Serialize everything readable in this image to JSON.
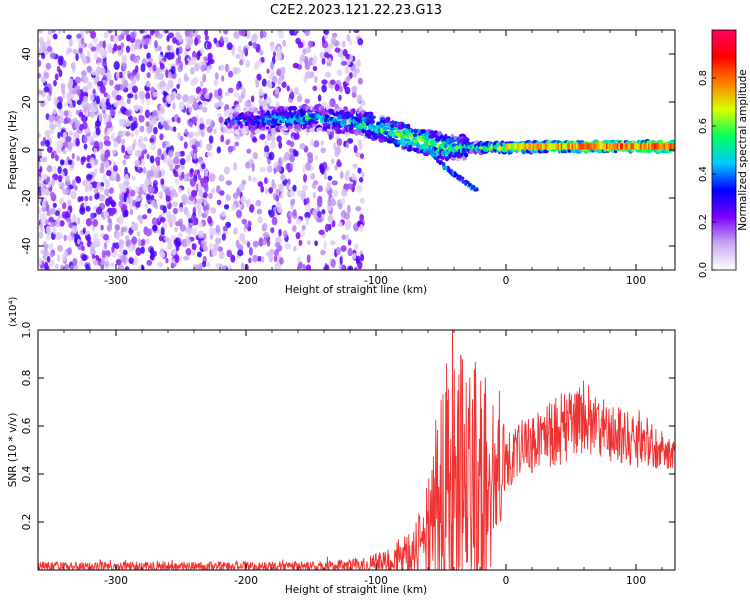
{
  "title": "C2E2.2023.121.22.23.G13",
  "chart_data": [
    {
      "type": "heatmap",
      "title": "C2E2.2023.121.22.23.G13",
      "xlabel": "Height of straight line (km)",
      "ylabel": "Frequency (Hz)",
      "xlim": [
        -360,
        130
      ],
      "ylim": [
        -50,
        50
      ],
      "x_ticks": [
        -300,
        -200,
        -100,
        0,
        100
      ],
      "y_ticks": [
        -40,
        -20,
        0,
        20,
        40
      ],
      "colorbar": {
        "label": "Normalized spectral amplitude",
        "range": [
          0,
          1
        ],
        "ticks": [
          "0.0",
          "0.2",
          "0.4",
          "0.6",
          "0.8"
        ],
        "colormap": [
          "#ffffff",
          "#c8a8f0",
          "#7a00ff",
          "#0000ff",
          "#00c8ff",
          "#00ff60",
          "#d8ff00",
          "#ff8000",
          "#ff0000",
          "#ff0060"
        ]
      },
      "noise_region": {
        "x": [
          -360,
          -110
        ],
        "freq": [
          -50,
          50
        ],
        "amplitude": [
          0.05,
          0.3
        ]
      },
      "ridge": [
        {
          "x": -215,
          "f": 12,
          "a": 0.3
        },
        {
          "x": -170,
          "f": 13,
          "a": 0.45
        },
        {
          "x": -140,
          "f": 13,
          "a": 0.45
        },
        {
          "x": -110,
          "f": 11,
          "a": 0.5
        },
        {
          "x": -90,
          "f": 8,
          "a": 0.55
        },
        {
          "x": -75,
          "f": 5,
          "a": 0.6
        },
        {
          "x": -60,
          "f": 3,
          "a": 0.6
        },
        {
          "x": -45,
          "f": 1,
          "a": 0.55
        },
        {
          "x": -30,
          "f": 1,
          "a": 0.5
        },
        {
          "x": 0,
          "f": 1,
          "a": 0.65
        },
        {
          "x": 50,
          "f": 1.5,
          "a": 0.75
        },
        {
          "x": 130,
          "f": 1.5,
          "a": 0.8
        }
      ],
      "branch": [
        {
          "x": -60,
          "f": 0
        },
        {
          "x": -45,
          "f": -8
        },
        {
          "x": -35,
          "f": -12
        },
        {
          "x": -22,
          "f": -17
        }
      ]
    },
    {
      "type": "line",
      "xlabel": "Height of straight line (km)",
      "ylabel": "SNR (10 * v/v)",
      "y_multiplier": "(x10⁴)",
      "xlim": [
        -360,
        130
      ],
      "ylim": [
        0,
        1.0
      ],
      "x_ticks": [
        -300,
        -200,
        -100,
        0,
        100
      ],
      "y_ticks": [
        0.2,
        0.4,
        0.6,
        0.8,
        1.0
      ],
      "y_tick_labels": [
        "0.2",
        "0.4",
        "0.6",
        "0.8",
        "1.0"
      ],
      "series": [
        {
          "color": "#ee3333",
          "envelope": [
            {
              "x": -360,
              "base": 0.015,
              "amp": 0.02
            },
            {
              "x": -150,
              "base": 0.015,
              "amp": 0.02
            },
            {
              "x": -110,
              "base": 0.02,
              "amp": 0.03
            },
            {
              "x": -90,
              "base": 0.04,
              "amp": 0.05
            },
            {
              "x": -70,
              "base": 0.08,
              "amp": 0.12
            },
            {
              "x": -55,
              "base": 0.2,
              "amp": 0.3
            },
            {
              "x": -45,
              "base": 0.35,
              "amp": 0.6
            },
            {
              "x": -35,
              "base": 0.35,
              "amp": 0.55
            },
            {
              "x": -20,
              "base": 0.3,
              "amp": 0.6
            },
            {
              "x": -10,
              "base": 0.35,
              "amp": 0.35
            },
            {
              "x": 0,
              "base": 0.45,
              "amp": 0.15
            },
            {
              "x": 20,
              "base": 0.52,
              "amp": 0.12
            },
            {
              "x": 40,
              "base": 0.58,
              "amp": 0.15
            },
            {
              "x": 60,
              "base": 0.64,
              "amp": 0.15
            },
            {
              "x": 80,
              "base": 0.57,
              "amp": 0.12
            },
            {
              "x": 100,
              "base": 0.54,
              "amp": 0.12
            },
            {
              "x": 130,
              "base": 0.48,
              "amp": 0.06
            }
          ]
        }
      ]
    }
  ]
}
